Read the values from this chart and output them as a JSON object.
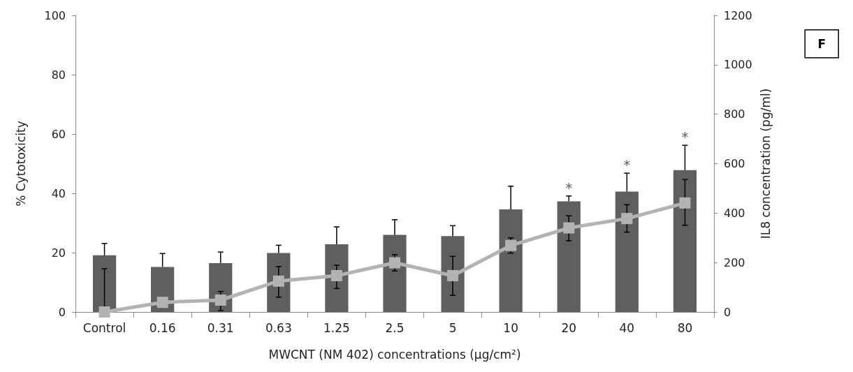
{
  "chart_data": {
    "type": "bar",
    "categories": [
      "Control",
      "0.16",
      "0.31",
      "0.63",
      "1.25",
      "2.5",
      "5",
      "10",
      "20",
      "40",
      "80"
    ],
    "series": [
      {
        "color": "#5f5f5f",
        "values": [
          19.1,
          15.2,
          16.5,
          19.9,
          22.8,
          26.0,
          25.6,
          34.6,
          37.3,
          40.6,
          47.8
        ],
        "errors": [
          [
            19.1,
            23.1
          ],
          [
            15.2,
            19.7
          ],
          [
            16.5,
            20.2
          ],
          [
            19.9,
            22.5
          ],
          [
            22.8,
            28.7
          ],
          [
            26.0,
            31.1
          ],
          [
            25.6,
            29.1
          ],
          [
            34.6,
            42.4
          ],
          [
            37.3,
            39.1
          ],
          [
            40.6,
            46.8
          ],
          [
            47.8,
            56.2
          ]
        ]
      },
      {
        "type": "line",
        "axis": "y2",
        "color": "#b3b3b3",
        "marker": "square",
        "values": [
          0,
          39,
          48,
          125,
          147,
          199,
          147,
          269,
          340,
          378,
          441
        ],
        "errors": [
          [
            0,
            175
          ],
          null,
          [
            6,
            83
          ],
          [
            60,
            184
          ],
          [
            95,
            189
          ],
          33,
          [
            67,
            225
          ],
          31,
          [
            288,
            389
          ],
          [
            323,
            434
          ],
          [
            351,
            536
          ]
        ]
      }
    ],
    "xlabel": "MWCNT (NM 402) concentrations (µg/cm²)",
    "ylabel": "% Cytotoxicity",
    "y2label": "IL8 concentration (pg/ml)",
    "ylim": [
      0,
      100
    ],
    "yticks": [
      0,
      20,
      40,
      60,
      80,
      100
    ],
    "y2lim": [
      0,
      1200
    ],
    "y2ticks": [
      0,
      200,
      400,
      600,
      800,
      1000,
      1200
    ],
    "annotations": [
      "F",
      {
        "text": "*",
        "x": "20",
        "y": 37.3
      },
      {
        "text": "*",
        "x": "40",
        "y": 40.6
      },
      {
        "text": "*",
        "x": "80",
        "y": 47.8
      }
    ],
    "grid": false
  }
}
